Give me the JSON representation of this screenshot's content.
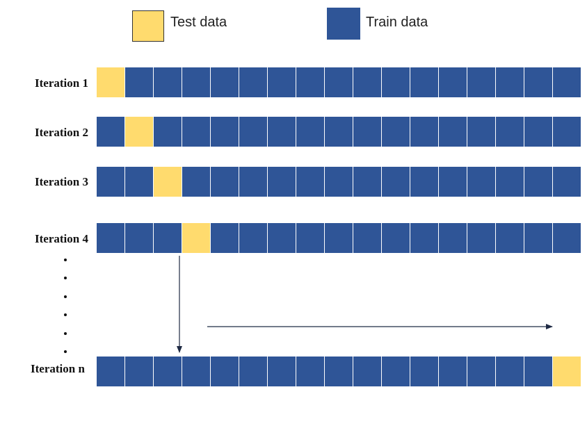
{
  "legend": {
    "test": {
      "label": "Test data",
      "color": "#FFDB6E"
    },
    "train": {
      "label": "Train data",
      "color": "#2F5597"
    }
  },
  "iterations": [
    {
      "label": "Iteration 1",
      "test_index": 0
    },
    {
      "label": "Iteration 2",
      "test_index": 1
    },
    {
      "label": "Iteration 3",
      "test_index": 2
    },
    {
      "label": "Iteration 4",
      "test_index": 3
    },
    {
      "label": "Iteration n",
      "test_index": 16
    }
  ],
  "blocks_per_row": 17
}
